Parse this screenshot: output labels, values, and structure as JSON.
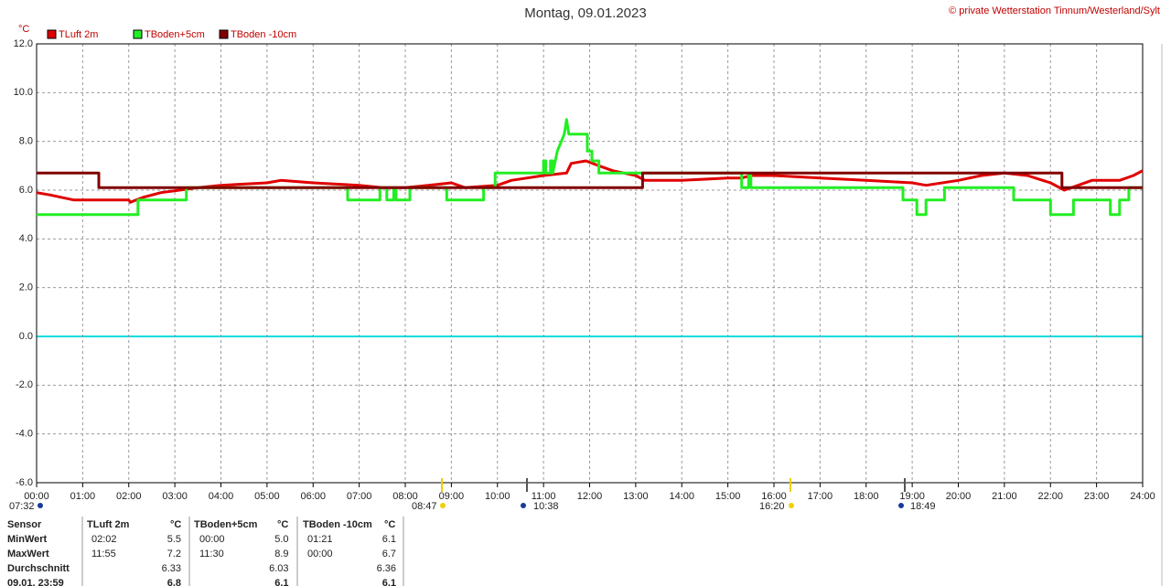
{
  "chart_data": {
    "type": "line",
    "title": "Montag, 09.01.2023",
    "subtitle": "© private Wetterstation Tinnum/Westerland/Sylt",
    "y_label": "°C",
    "grid": true,
    "zero_line_color": "#00dddd",
    "ylim": [
      -6,
      12
    ],
    "yticks": [
      {
        "value": 12,
        "label": "12.0"
      },
      {
        "value": 10,
        "label": "10.0"
      },
      {
        "value": 8,
        "label": "8.0"
      },
      {
        "value": 6,
        "label": "6.0"
      },
      {
        "value": 4,
        "label": "4.0"
      },
      {
        "value": 2,
        "label": "2.0"
      },
      {
        "value": 0,
        "label": "0.0"
      },
      {
        "value": -2,
        "label": "-2.0"
      },
      {
        "value": -4,
        "label": "-4.0"
      },
      {
        "value": -6,
        "label": "-6.0"
      }
    ],
    "xlim": [
      0,
      24
    ],
    "xticks": [
      {
        "value": 0,
        "label": "00:00"
      },
      {
        "value": 1,
        "label": "01:00"
      },
      {
        "value": 2,
        "label": "02:00"
      },
      {
        "value": 3,
        "label": "03:00"
      },
      {
        "value": 4,
        "label": "04:00"
      },
      {
        "value": 5,
        "label": "05:00"
      },
      {
        "value": 6,
        "label": "06:00"
      },
      {
        "value": 7,
        "label": "07:00"
      },
      {
        "value": 8,
        "label": "08:00"
      },
      {
        "value": 9,
        "label": "09:00"
      },
      {
        "value": 10,
        "label": "10:00"
      },
      {
        "value": 11,
        "label": "11:00"
      },
      {
        "value": 12,
        "label": "12:00"
      },
      {
        "value": 13,
        "label": "13:00"
      },
      {
        "value": 14,
        "label": "14:00"
      },
      {
        "value": 15,
        "label": "15:00"
      },
      {
        "value": 16,
        "label": "16:00"
      },
      {
        "value": 17,
        "label": "17:00"
      },
      {
        "value": 18,
        "label": "18:00"
      },
      {
        "value": 19,
        "label": "19:00"
      },
      {
        "value": 20,
        "label": "20:00"
      },
      {
        "value": 21,
        "label": "21:00"
      },
      {
        "value": 22,
        "label": "22:00"
      },
      {
        "value": 23,
        "label": "23:00"
      },
      {
        "value": 24,
        "label": "24:00"
      }
    ],
    "series": [
      {
        "name": "TLuft 2m",
        "color": "#e00000",
        "x": [
          0,
          0.3,
          0.8,
          2.0,
          2.03,
          2.3,
          2.7,
          3.1,
          3.5,
          4.0,
          5.0,
          5.3,
          6.0,
          7.0,
          7.5,
          8.0,
          8.5,
          9.0,
          9.3,
          10.0,
          10.3,
          11.0,
          11.5,
          11.6,
          11.92,
          12.2,
          12.5,
          13.0,
          13.2,
          14.0,
          15.0,
          15.3,
          15.5,
          16.0,
          17.0,
          18.0,
          19.0,
          19.3,
          20.0,
          20.5,
          21.0,
          21.5,
          22.0,
          22.3,
          22.6,
          22.9,
          23.5,
          23.8,
          24.0
        ],
        "values": [
          5.9,
          5.8,
          5.6,
          5.6,
          5.5,
          5.7,
          5.9,
          6.0,
          6.1,
          6.2,
          6.3,
          6.4,
          6.3,
          6.2,
          6.1,
          6.1,
          6.2,
          6.3,
          6.1,
          6.2,
          6.4,
          6.6,
          6.7,
          7.1,
          7.2,
          7.0,
          6.8,
          6.6,
          6.4,
          6.4,
          6.5,
          6.5,
          6.6,
          6.6,
          6.5,
          6.4,
          6.3,
          6.2,
          6.4,
          6.6,
          6.7,
          6.6,
          6.3,
          6.0,
          6.2,
          6.4,
          6.4,
          6.6,
          6.8
        ]
      },
      {
        "name": "TBoden+5cm",
        "color": "#22ee22",
        "x": [
          0,
          2.2,
          2.2,
          3.25,
          3.25,
          6.75,
          6.75,
          7.45,
          7.45,
          7.6,
          7.6,
          7.75,
          7.75,
          7.8,
          7.8,
          8.1,
          8.1,
          8.9,
          8.9,
          9.7,
          9.7,
          9.95,
          9.95,
          11.0,
          11.0,
          11.05,
          11.05,
          11.15,
          11.15,
          11.2,
          11.2,
          11.3,
          11.45,
          11.5,
          11.55,
          11.95,
          11.95,
          12.05,
          12.05,
          12.2,
          12.2,
          15.3,
          15.3,
          15.45,
          15.45,
          15.5,
          15.5,
          15.6,
          15.6,
          18.8,
          18.8,
          19.1,
          19.1,
          19.3,
          19.3,
          19.7,
          19.7,
          21.2,
          21.2,
          22.0,
          22.0,
          22.5,
          22.5,
          23.3,
          23.3,
          23.5,
          23.5,
          23.7,
          23.7,
          24.0
        ],
        "values": [
          5.0,
          5.0,
          5.6,
          5.6,
          6.1,
          6.1,
          5.6,
          5.6,
          6.1,
          6.1,
          5.6,
          5.6,
          6.1,
          6.1,
          5.6,
          5.6,
          6.1,
          6.1,
          5.6,
          5.6,
          6.1,
          6.1,
          6.7,
          6.7,
          7.2,
          7.2,
          6.7,
          6.7,
          7.2,
          7.2,
          6.7,
          7.6,
          8.3,
          8.9,
          8.3,
          8.3,
          7.6,
          7.6,
          7.2,
          7.2,
          6.7,
          6.7,
          6.1,
          6.1,
          6.6,
          6.6,
          6.1,
          6.1,
          6.1,
          6.1,
          5.6,
          5.6,
          5.0,
          5.0,
          5.6,
          5.6,
          6.1,
          6.1,
          5.6,
          5.6,
          5.0,
          5.0,
          5.6,
          5.6,
          5.0,
          5.0,
          5.6,
          5.6,
          6.1,
          6.1
        ]
      },
      {
        "name": "TBoden -10cm",
        "color": "#800000",
        "x": [
          0,
          1.35,
          1.35,
          13.15,
          13.15,
          22.25,
          22.25,
          24
        ],
        "values": [
          6.7,
          6.7,
          6.1,
          6.1,
          6.7,
          6.7,
          6.1,
          6.1
        ]
      }
    ],
    "annotations": [
      "07:32",
      "08:47",
      "10:38",
      "16:20",
      "18:49"
    ]
  },
  "table": {
    "header": [
      "Sensor",
      "TLuft 2m",
      "°C",
      "TBoden+5cm",
      "°C",
      "TBoden -10cm",
      "°C"
    ],
    "rows": [
      {
        "label": "MinWert",
        "cells": [
          {
            "time": "02:02",
            "value": "5.5"
          },
          {
            "time": "00:00",
            "value": "5.0"
          },
          {
            "time": "01:21",
            "value": "6.1"
          }
        ]
      },
      {
        "label": "MaxWert",
        "cells": [
          {
            "time": "11:55",
            "value": "7.2"
          },
          {
            "time": "11:30",
            "value": "8.9"
          },
          {
            "time": "00:00",
            "value": "6.7"
          }
        ]
      },
      {
        "label": "Durchschnitt",
        "cells": [
          {
            "value": "6.33"
          },
          {
            "value": "6.03"
          },
          {
            "value": "6.36"
          }
        ]
      },
      {
        "label": "09.01. 23:59",
        "cells": [
          {
            "value": "6.8"
          },
          {
            "value": "6.1"
          },
          {
            "value": "6.1"
          }
        ]
      }
    ]
  }
}
